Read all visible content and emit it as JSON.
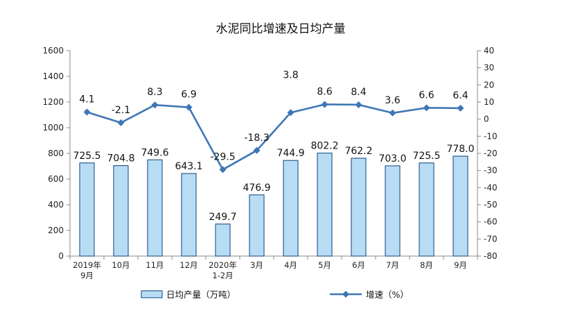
{
  "chart_data": {
    "type": "bar+line",
    "title": "水泥同比增速及日均产量",
    "categories": [
      [
        "2019年",
        "9月"
      ],
      [
        "10月"
      ],
      [
        "11月"
      ],
      [
        "12月"
      ],
      [
        "2020年",
        "1-2月"
      ],
      [
        "3月"
      ],
      [
        "4月"
      ],
      [
        "5月"
      ],
      [
        "6月"
      ],
      [
        "7月"
      ],
      [
        "8月"
      ],
      [
        "9月"
      ]
    ],
    "bar_series": {
      "name": "日均产量（万吨）",
      "values": [
        725.5,
        704.8,
        749.6,
        643.1,
        249.7,
        476.9,
        744.9,
        802.2,
        762.2,
        703.0,
        725.5,
        778.0
      ],
      "labels": [
        "725.5",
        "704.8",
        "749.6",
        "643.1",
        "249.7",
        "476.9",
        "744.9",
        "802.2",
        "762.2",
        "703.0",
        "725.5",
        "778.0"
      ],
      "fill": "#b9dcf5",
      "stroke": "#2c5d8f"
    },
    "line_series": {
      "name": "增速（%）",
      "values": [
        4.1,
        -2.1,
        8.3,
        6.9,
        -29.5,
        -18.3,
        3.8,
        8.6,
        8.4,
        3.6,
        6.6,
        6.4
      ],
      "labels": [
        "4.1",
        "-2.1",
        "8.3",
        "6.9",
        "-29.5",
        "-18.3",
        "3.8",
        "8.6",
        "8.4",
        "3.6",
        "6.6",
        "6.4"
      ],
      "color": "#3e77b6"
    },
    "y_left": {
      "min": 0,
      "max": 1600,
      "ticks": [
        "0",
        "200",
        "400",
        "600",
        "800",
        "1000",
        "1200",
        "1400",
        "1600"
      ]
    },
    "y_right": {
      "min": -80,
      "max": 40,
      "ticks": [
        "-80",
        "-70",
        "-60",
        "-50",
        "-40",
        "-30",
        "-20",
        "-10",
        "0",
        "10",
        "20",
        "30",
        "40"
      ]
    },
    "legend_position": "bottom",
    "grid": false
  }
}
